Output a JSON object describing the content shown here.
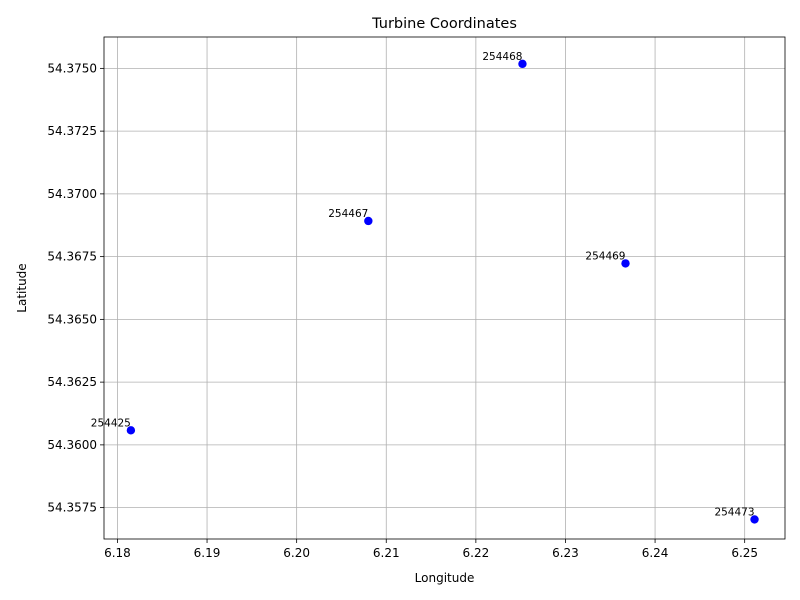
{
  "chart_data": {
    "type": "scatter",
    "title": "Turbine Coordinates",
    "xlabel": "Longitude",
    "ylabel": "Latitude",
    "xlim": [
      6.1785,
      6.2545
    ],
    "ylim": [
      54.35625,
      54.37625
    ],
    "xticks": [
      "6.18",
      "6.19",
      "6.20",
      "6.21",
      "6.22",
      "6.23",
      "6.24",
      "6.25"
    ],
    "yticks": [
      "54.3575",
      "54.3600",
      "54.3625",
      "54.3650",
      "54.3675",
      "54.3700",
      "54.3725",
      "54.3750"
    ],
    "grid": true,
    "marker_color": "#0000ff",
    "points": [
      {
        "label": "254468",
        "x": 6.2252,
        "y": 54.37518
      },
      {
        "label": "254467",
        "x": 6.208,
        "y": 54.36892
      },
      {
        "label": "254469",
        "x": 6.2367,
        "y": 54.36723
      },
      {
        "label": "254425",
        "x": 6.1815,
        "y": 54.36058
      },
      {
        "label": "254473",
        "x": 6.2511,
        "y": 54.35703
      }
    ]
  }
}
